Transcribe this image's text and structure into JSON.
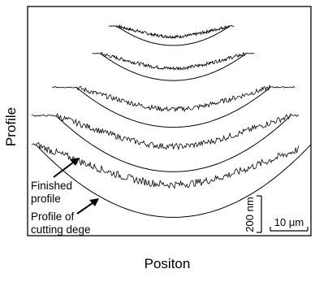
{
  "chart_data": {
    "type": "line",
    "xlabel": "Positon",
    "ylabel": "Profile",
    "grid": false,
    "units": {
      "x": "µm",
      "y": "nm"
    },
    "x_range": [
      0,
      70
    ],
    "y_range": [
      0,
      1000
    ],
    "scale_bars": {
      "horizontal": "10 μm",
      "vertical": "200 nm"
    },
    "annotations": [
      {
        "text": "Finished profile",
        "target": "finished-profile"
      },
      {
        "text": "Profile of cutting dege",
        "target": "cutting-edge-profile"
      }
    ],
    "series": [
      {
        "kind": "pair",
        "center_x": 36,
        "half_width": 14,
        "top_y": 915,
        "depth": 85,
        "start_x": 20,
        "end_x": 51,
        "noise": 6
      },
      {
        "kind": "pair",
        "center_x": 36,
        "half_width": 18,
        "top_y": 795,
        "depth": 118,
        "start_x": 16,
        "end_x": 56,
        "noise": 7
      },
      {
        "kind": "pair",
        "center_x": 36,
        "half_width": 24,
        "top_y": 648,
        "depth": 175,
        "start_x": 6,
        "end_x": 66,
        "noise": 10
      },
      {
        "kind": "pair",
        "center_x": 36,
        "half_width": 29,
        "top_y": 524,
        "depth": 245,
        "start_x": 1,
        "end_x": 67,
        "noise": 12
      },
      {
        "kind": "pair",
        "center_x": 36,
        "half_width": 34,
        "top_y": 398,
        "depth": 318,
        "start_x": 1,
        "end_x": 67,
        "noise": 15
      }
    ]
  }
}
